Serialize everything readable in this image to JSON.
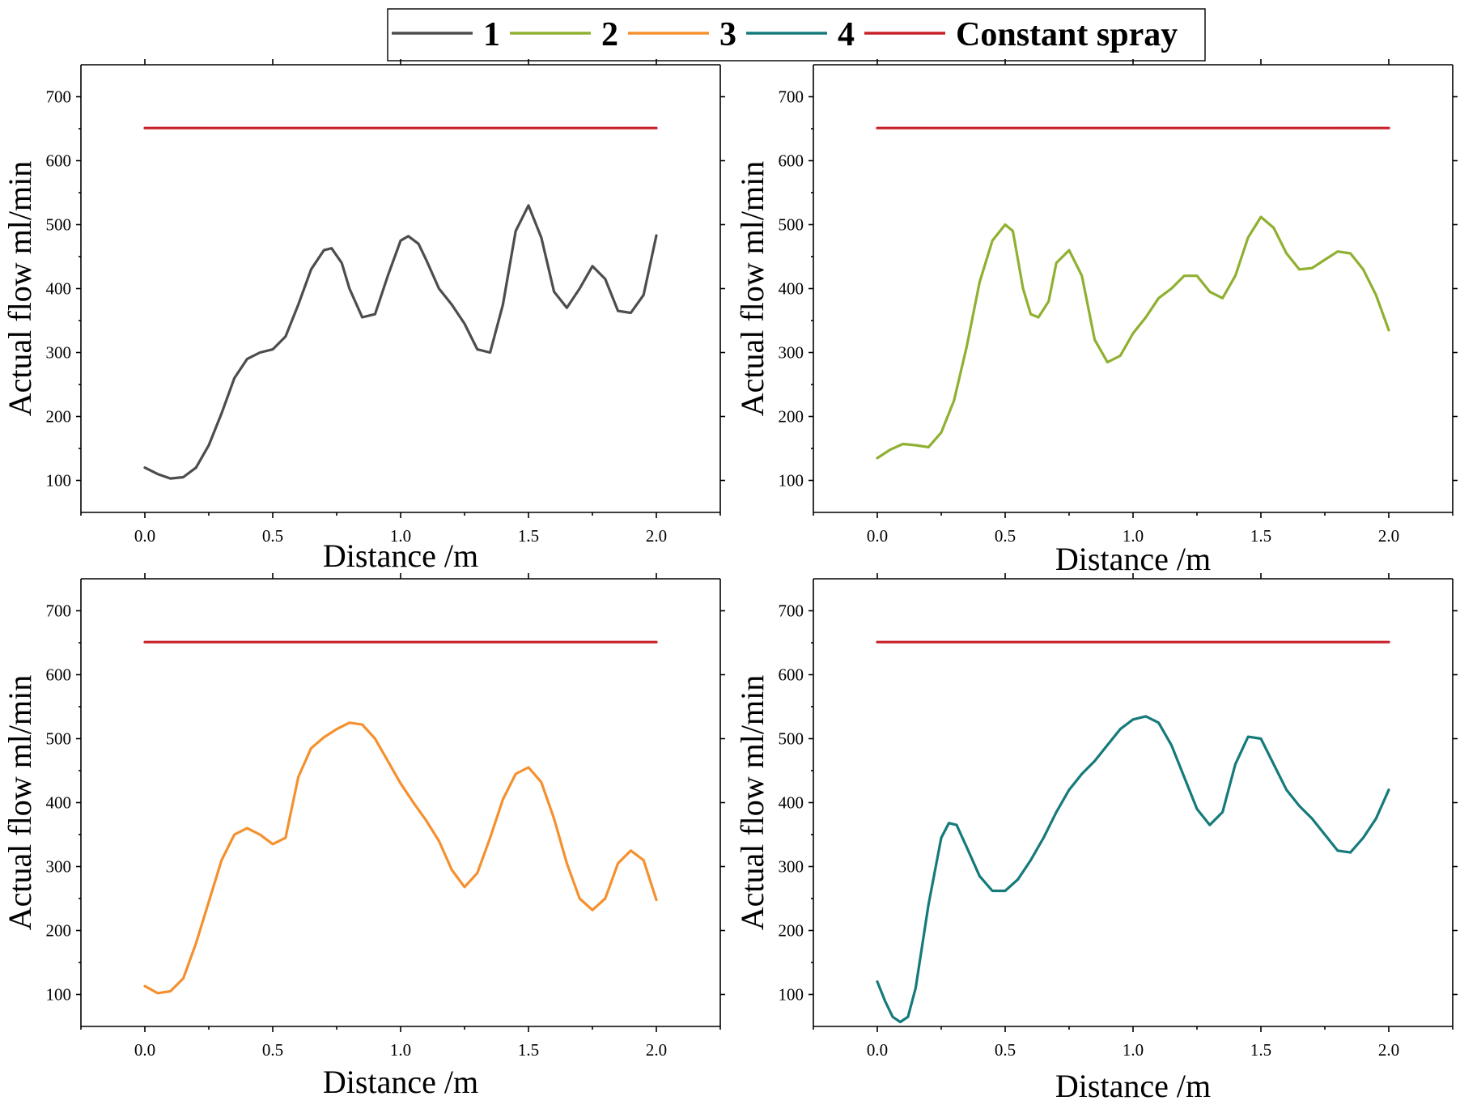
{
  "legend": {
    "items": [
      {
        "label": "1",
        "color": "#4d4d4d"
      },
      {
        "label": "2",
        "color": "#8fb030"
      },
      {
        "label": "3",
        "color": "#f5902e"
      },
      {
        "label": "4",
        "color": "#167a7a"
      },
      {
        "label": "Constant spray",
        "color": "#c8202a"
      }
    ]
  },
  "chart_data": [
    {
      "type": "line",
      "title": "",
      "xlabel": "Distance /m",
      "ylabel": "Actual flow ml/min",
      "xlim": [
        -0.25,
        2.25
      ],
      "ylim": [
        50,
        750
      ],
      "xticks": [
        "0.0",
        "0.5",
        "1.0",
        "1.5",
        "2.0"
      ],
      "yticks": [
        "100",
        "200",
        "300",
        "400",
        "500",
        "600",
        "700"
      ],
      "series": [
        {
          "name": "1",
          "color": "#4d4d4d",
          "x": [
            0,
            0.05,
            0.1,
            0.15,
            0.2,
            0.25,
            0.3,
            0.35,
            0.4,
            0.45,
            0.5,
            0.55,
            0.6,
            0.65,
            0.7,
            0.73,
            0.77,
            0.8,
            0.85,
            0.9,
            0.95,
            1.0,
            1.03,
            1.07,
            1.1,
            1.15,
            1.2,
            1.25,
            1.3,
            1.35,
            1.4,
            1.45,
            1.5,
            1.55,
            1.6,
            1.65,
            1.7,
            1.75,
            1.8,
            1.85,
            1.9,
            1.95,
            2.0
          ],
          "values": [
            120,
            110,
            103,
            105,
            120,
            155,
            205,
            260,
            290,
            300,
            305,
            325,
            375,
            430,
            460,
            463,
            440,
            400,
            355,
            360,
            420,
            475,
            482,
            470,
            445,
            400,
            375,
            345,
            305,
            300,
            375,
            490,
            530,
            480,
            395,
            370,
            400,
            435,
            415,
            365,
            362,
            390,
            483
          ]
        },
        {
          "name": "Constant spray",
          "color": "#c8202a",
          "x": [
            0,
            2
          ],
          "values": [
            651,
            651
          ]
        }
      ]
    },
    {
      "type": "line",
      "title": "",
      "xlabel": "Distance /m",
      "ylabel": "Actual flow ml/min",
      "xlim": [
        -0.25,
        2.25
      ],
      "ylim": [
        50,
        750
      ],
      "xticks": [
        "0.0",
        "0.5",
        "1.0",
        "1.5",
        "2.0"
      ],
      "yticks": [
        "100",
        "200",
        "300",
        "400",
        "500",
        "600",
        "700"
      ],
      "series": [
        {
          "name": "2",
          "color": "#8fb030",
          "x": [
            0,
            0.05,
            0.1,
            0.15,
            0.2,
            0.25,
            0.3,
            0.35,
            0.4,
            0.45,
            0.5,
            0.53,
            0.57,
            0.6,
            0.63,
            0.67,
            0.7,
            0.75,
            0.8,
            0.85,
            0.9,
            0.95,
            1.0,
            1.05,
            1.1,
            1.15,
            1.2,
            1.25,
            1.3,
            1.35,
            1.4,
            1.45,
            1.5,
            1.55,
            1.6,
            1.65,
            1.7,
            1.75,
            1.8,
            1.85,
            1.9,
            1.95,
            2.0
          ],
          "values": [
            135,
            148,
            157,
            155,
            152,
            175,
            225,
            310,
            410,
            475,
            500,
            490,
            400,
            360,
            355,
            380,
            440,
            460,
            420,
            320,
            285,
            295,
            330,
            355,
            385,
            400,
            420,
            420,
            395,
            385,
            420,
            480,
            512,
            495,
            455,
            430,
            432,
            445,
            458,
            455,
            430,
            390,
            335
          ]
        },
        {
          "name": "Constant spray",
          "color": "#c8202a",
          "x": [
            0,
            2
          ],
          "values": [
            651,
            651
          ]
        }
      ]
    },
    {
      "type": "line",
      "title": "",
      "xlabel": "Distance /m",
      "ylabel": "Actual flow ml/min",
      "xlim": [
        -0.25,
        2.25
      ],
      "ylim": [
        50,
        750
      ],
      "xticks": [
        "0.0",
        "0.5",
        "1.0",
        "1.5",
        "2.0"
      ],
      "yticks": [
        "100",
        "200",
        "300",
        "400",
        "500",
        "600",
        "700"
      ],
      "series": [
        {
          "name": "3",
          "color": "#f5902e",
          "x": [
            0,
            0.05,
            0.1,
            0.15,
            0.2,
            0.25,
            0.3,
            0.35,
            0.4,
            0.45,
            0.5,
            0.55,
            0.6,
            0.65,
            0.7,
            0.75,
            0.8,
            0.85,
            0.9,
            0.95,
            1.0,
            1.05,
            1.1,
            1.15,
            1.2,
            1.25,
            1.3,
            1.35,
            1.4,
            1.45,
            1.5,
            1.55,
            1.6,
            1.65,
            1.7,
            1.75,
            1.8,
            1.85,
            1.9,
            1.95,
            2.0
          ],
          "values": [
            113,
            102,
            105,
            125,
            180,
            245,
            310,
            350,
            360,
            350,
            335,
            345,
            440,
            485,
            502,
            515,
            525,
            522,
            500,
            465,
            430,
            400,
            372,
            340,
            295,
            268,
            290,
            345,
            405,
            445,
            455,
            432,
            375,
            305,
            250,
            232,
            250,
            305,
            325,
            310,
            248
          ]
        },
        {
          "name": "Constant spray",
          "color": "#c8202a",
          "x": [
            0,
            2
          ],
          "values": [
            651,
            651
          ]
        }
      ]
    },
    {
      "type": "line",
      "title": "",
      "xlabel": "Distance /m",
      "ylabel": "Actual flow ml/min",
      "xlim": [
        -0.25,
        2.25
      ],
      "ylim": [
        50,
        750
      ],
      "xticks": [
        "0.0",
        "0.5",
        "1.0",
        "1.5",
        "2.0"
      ],
      "yticks": [
        "100",
        "200",
        "300",
        "400",
        "500",
        "600",
        "700"
      ],
      "series": [
        {
          "name": "4",
          "color": "#167a7a",
          "x": [
            0,
            0.03,
            0.06,
            0.09,
            0.12,
            0.15,
            0.2,
            0.25,
            0.28,
            0.31,
            0.35,
            0.4,
            0.45,
            0.5,
            0.55,
            0.6,
            0.65,
            0.7,
            0.75,
            0.8,
            0.85,
            0.9,
            0.95,
            1.0,
            1.05,
            1.1,
            1.15,
            1.2,
            1.25,
            1.3,
            1.35,
            1.4,
            1.45,
            1.5,
            1.55,
            1.6,
            1.65,
            1.7,
            1.75,
            1.8,
            1.85,
            1.9,
            1.95,
            2.0
          ],
          "values": [
            120,
            90,
            65,
            57,
            65,
            110,
            240,
            345,
            368,
            365,
            330,
            285,
            262,
            262,
            280,
            310,
            345,
            385,
            420,
            445,
            465,
            490,
            515,
            530,
            535,
            525,
            490,
            440,
            390,
            365,
            385,
            460,
            503,
            500,
            460,
            420,
            395,
            375,
            350,
            325,
            322,
            345,
            375,
            420
          ]
        },
        {
          "name": "Constant spray",
          "color": "#c8202a",
          "x": [
            0,
            2
          ],
          "values": [
            651,
            651
          ]
        }
      ]
    }
  ]
}
